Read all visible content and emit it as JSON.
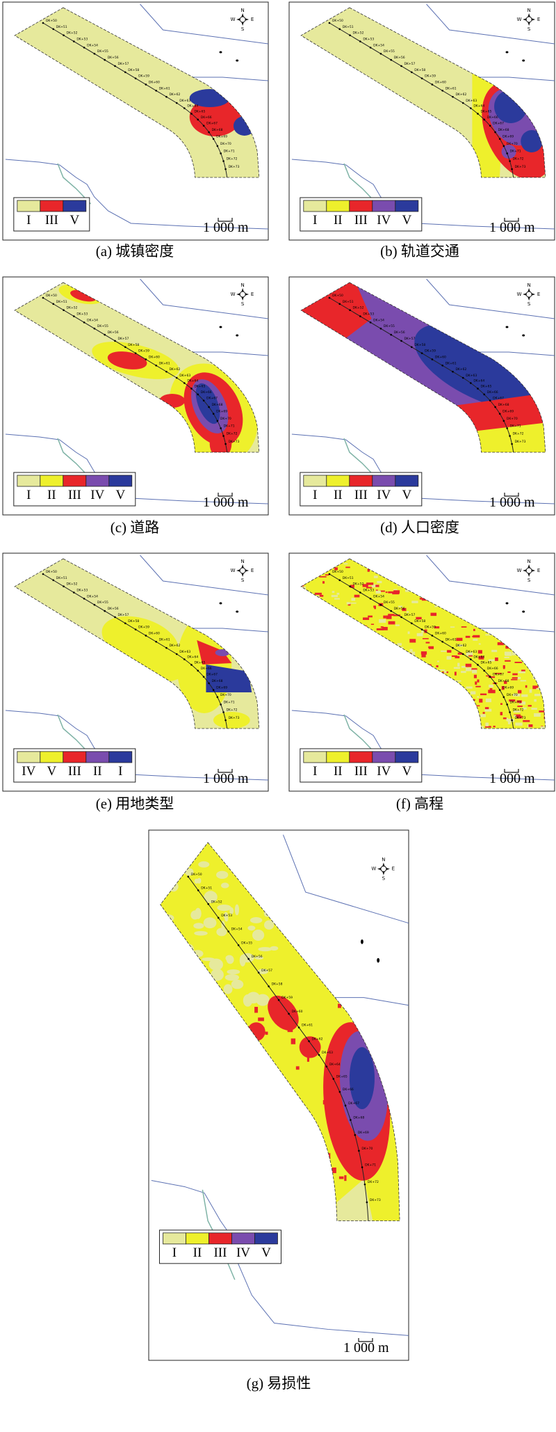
{
  "stations": [
    "DK+50",
    "DK+51",
    "DK+52",
    "DK+53",
    "DK+54",
    "DK+55",
    "DK+56",
    "DK+57",
    "DK+58",
    "DK+59",
    "DK+60",
    "DK+61",
    "DK+62",
    "DK+63",
    "DK+64",
    "DK+65",
    "DK+66",
    "DK+67",
    "DK+68",
    "DK+69",
    "DK+70",
    "DK+71",
    "DK+72",
    "DK+73"
  ],
  "compass": {
    "n": "N",
    "s": "S",
    "w": "W",
    "e": "E"
  },
  "scale_label": "1 000 m",
  "panels": [
    {
      "caption": "(a) 城镇密度",
      "legend": [
        {
          "label": "I",
          "color": "#e6e99c"
        },
        {
          "label": "III",
          "color": "#e8262a"
        },
        {
          "label": "V",
          "color": "#2b3a9c"
        }
      ]
    },
    {
      "caption": "(b) 轨道交通",
      "legend": [
        {
          "label": "I",
          "color": "#e6e99c"
        },
        {
          "label": "II",
          "color": "#eef02c"
        },
        {
          "label": "III",
          "color": "#e8262a"
        },
        {
          "label": "IV",
          "color": "#7a4cae"
        },
        {
          "label": "V",
          "color": "#2b3a9c"
        }
      ]
    },
    {
      "caption": "(c) 道路",
      "legend": [
        {
          "label": "I",
          "color": "#e6e99c"
        },
        {
          "label": "II",
          "color": "#eef02c"
        },
        {
          "label": "III",
          "color": "#e8262a"
        },
        {
          "label": "IV",
          "color": "#7a4cae"
        },
        {
          "label": "V",
          "color": "#2b3a9c"
        }
      ]
    },
    {
      "caption": "(d) 人口密度",
      "legend": [
        {
          "label": "I",
          "color": "#e6e99c"
        },
        {
          "label": "II",
          "color": "#eef02c"
        },
        {
          "label": "III",
          "color": "#e8262a"
        },
        {
          "label": "IV",
          "color": "#7a4cae"
        },
        {
          "label": "V",
          "color": "#2b3a9c"
        }
      ]
    },
    {
      "caption": "(e) 用地类型",
      "legend": [
        {
          "label": "IV",
          "color": "#e6e99c"
        },
        {
          "label": "V",
          "color": "#eef02c"
        },
        {
          "label": "III",
          "color": "#e8262a"
        },
        {
          "label": "II",
          "color": "#7a4cae"
        },
        {
          "label": "I",
          "color": "#2b3a9c"
        }
      ]
    },
    {
      "caption": "(f) 高程",
      "legend": [
        {
          "label": "I",
          "color": "#e6e99c"
        },
        {
          "label": "II",
          "color": "#eef02c"
        },
        {
          "label": "III",
          "color": "#e8262a"
        },
        {
          "label": "IV",
          "color": "#7a4cae"
        },
        {
          "label": "V",
          "color": "#2b3a9c"
        }
      ]
    },
    {
      "caption": "(g) 易损性",
      "legend": [
        {
          "label": "I",
          "color": "#e6e99c"
        },
        {
          "label": "II",
          "color": "#eef02c"
        },
        {
          "label": "III",
          "color": "#e8262a"
        },
        {
          "label": "IV",
          "color": "#7a4cae"
        },
        {
          "label": "V",
          "color": "#2b3a9c"
        }
      ]
    }
  ]
}
